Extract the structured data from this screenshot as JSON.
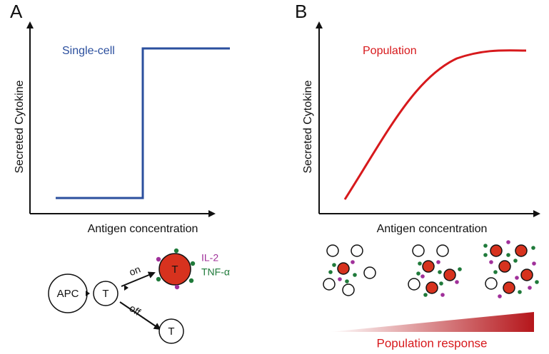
{
  "panels": [
    {
      "label": "A",
      "y_axis": "Secreted Cytokine",
      "x_axis": "Antigen concentration",
      "curve_label": "Single-cell"
    },
    {
      "label": "B",
      "y_axis": "Secreted Cytokine",
      "x_axis": "Antigen concentration",
      "curve_label": "Population"
    }
  ],
  "schematic_a": {
    "apc": "APC",
    "t_cell": "T",
    "on": "on",
    "off": "off",
    "activated": "T",
    "resting": "T",
    "il2": "IL-2",
    "tnf": "TNF-α"
  },
  "schematic_b": {
    "gradient_label": "Population response"
  }
}
